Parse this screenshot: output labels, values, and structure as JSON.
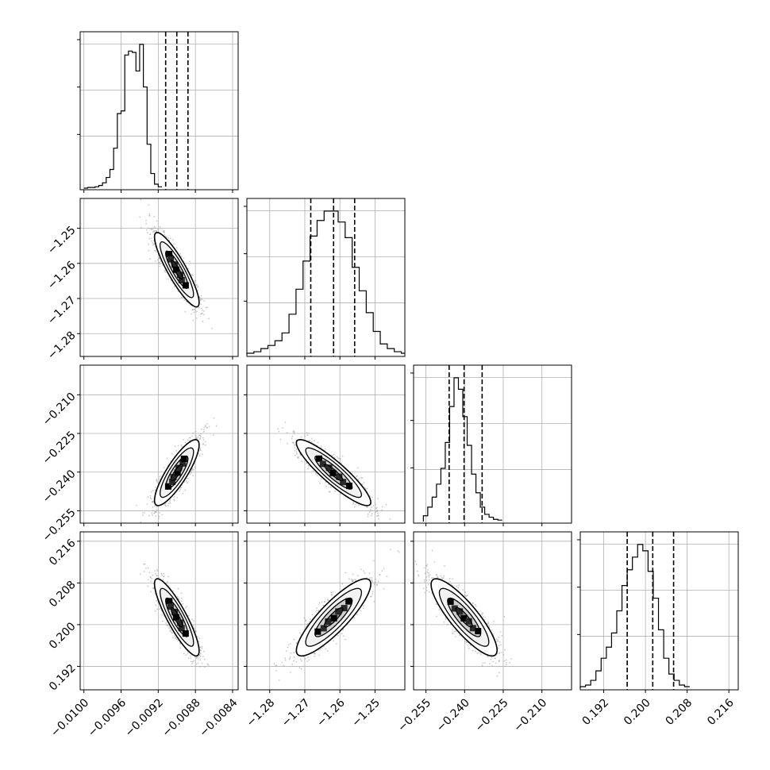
{
  "chart_data": {
    "type": "corner",
    "grid": true,
    "parameters": [
      {
        "ticks": [
          -0.01,
          -0.0096,
          -0.0092,
          -0.0088,
          -0.0084
        ],
        "tick_labels": [
          "−0.0100",
          "−0.0096",
          "−0.0092",
          "−0.0088",
          "−0.0084"
        ],
        "range": [
          -0.01004,
          -0.00834
        ]
      },
      {
        "ticks": [
          -1.28,
          -1.27,
          -1.26,
          -1.25
        ],
        "tick_labels": [
          "−1.28",
          "−1.27",
          "−1.26",
          "−1.25"
        ],
        "range": [
          -1.2865,
          -1.2415
        ]
      },
      {
        "ticks": [
          -0.255,
          -0.24,
          -0.225,
          -0.21
        ],
        "tick_labels": [
          "−0.255",
          "−0.240",
          "−0.225",
          "−0.210"
        ],
        "range": [
          -0.2598,
          -0.1985
        ]
      },
      {
        "ticks": [
          0.192,
          0.2,
          0.208,
          0.216
        ],
        "tick_labels": [
          "0.192",
          "0.200",
          "0.208",
          "0.216"
        ],
        "range": [
          0.1875,
          0.2178
        ]
      }
    ],
    "quantiles": [
      [
        -0.00912,
        -0.009,
        -0.00888
      ],
      [
        -1.2683,
        -1.2618,
        -1.2558
      ],
      [
        -0.246,
        -0.2402,
        -0.2332
      ],
      [
        0.1965,
        0.2014,
        0.2054
      ]
    ],
    "histograms": [
      {
        "bin_start": -0.01,
        "bin_width": 4e-05,
        "counts": [
          0,
          0.5,
          0.5,
          1,
          2,
          4,
          8,
          14,
          30,
          56,
          58,
          100,
          103,
          102,
          88,
          108,
          76,
          33,
          11,
          3,
          1
        ]
      },
      {
        "bin_start": -1.2865,
        "bin_width": 0.002,
        "counts": [
          1,
          2,
          4,
          6,
          9,
          14,
          26,
          42,
          60,
          76,
          86,
          92,
          92,
          85,
          75,
          56,
          41,
          27,
          15,
          7,
          4,
          2,
          1
        ]
      },
      {
        "bin_start": -0.256,
        "bin_width": 0.0017,
        "counts": [
          4,
          10,
          17,
          26,
          37,
          55,
          80,
          100,
          92,
          73,
          53,
          33,
          20,
          10,
          5,
          3,
          1.5,
          1
        ]
      },
      {
        "bin_start": 0.1875,
        "bin_width": 0.001,
        "counts": [
          1,
          2,
          5,
          11,
          19,
          26,
          35,
          49,
          65,
          75,
          83,
          91,
          87,
          74,
          57,
          37,
          19,
          9,
          5,
          2,
          1
        ]
      }
    ],
    "pairs": [
      {
        "x": 0,
        "y": 1,
        "cx": -0.009,
        "cy": -1.2618,
        "sx": 0.00012,
        "sy": 0.0053,
        "rho": -0.88
      },
      {
        "x": 0,
        "y": 2,
        "cx": -0.009,
        "cy": -0.2402,
        "sx": 0.00012,
        "sy": 0.0064,
        "rho": 0.84
      },
      {
        "x": 1,
        "y": 2,
        "cx": -1.2618,
        "cy": -0.2402,
        "sx": 0.0053,
        "sy": 0.0064,
        "rho": -0.9
      },
      {
        "x": 0,
        "y": 3,
        "cx": -0.009,
        "cy": 0.2014,
        "sx": 0.00012,
        "sy": 0.0037,
        "rho": -0.87
      },
      {
        "x": 1,
        "y": 3,
        "cx": -1.2618,
        "cy": 0.2014,
        "sx": 0.0053,
        "sy": 0.0037,
        "rho": 0.86
      },
      {
        "x": 2,
        "y": 3,
        "cx": -0.2402,
        "cy": 0.2014,
        "sx": 0.0064,
        "sy": 0.0037,
        "rho": -0.85
      }
    ],
    "contour_levels_sigma": [
      0.5,
      1.0,
      1.5,
      2.0
    ]
  }
}
